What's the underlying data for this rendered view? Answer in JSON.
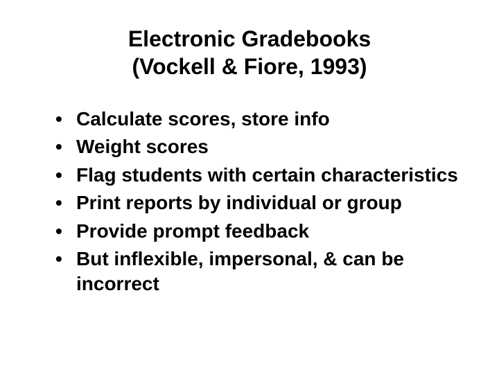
{
  "title_line1": "Electronic Gradebooks",
  "title_line2": "(Vockell & Fiore, 1993)",
  "bullets": [
    "Calculate scores, store info",
    "Weight scores",
    "Flag students with certain characteristics",
    "Print reports by individual or group",
    "Provide prompt feedback",
    "But inflexible, impersonal, & can be incorrect"
  ],
  "colors": {
    "background": "#ffffff",
    "text": "#000000"
  },
  "typography": {
    "title_fontsize": 32,
    "body_fontsize": 28,
    "font_weight": "bold",
    "font_family": "Arial"
  }
}
